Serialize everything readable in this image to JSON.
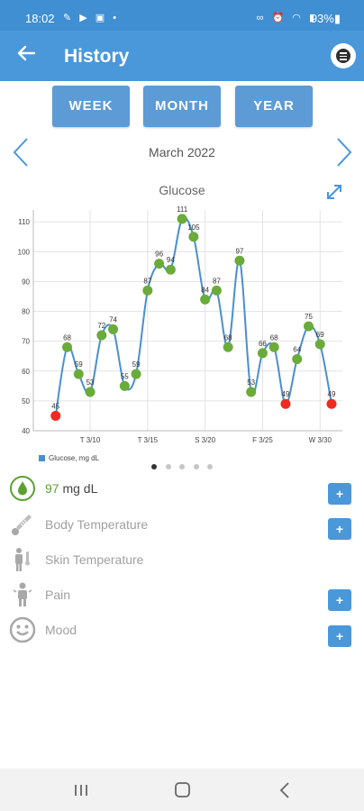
{
  "status_bar": {
    "time": "18:02",
    "left_icons": "✎ ▶ ▣ •",
    "right_icons": "∞ ⏰ ◠ ▮",
    "battery": "93%▮"
  },
  "app_bar": {
    "title": "History"
  },
  "period_buttons": [
    "WEEK",
    "MONTH",
    "YEAR"
  ],
  "month": "March 2022",
  "chart_title": "Glucose",
  "chart_data": {
    "type": "line",
    "title": "Glucose",
    "xlabel": "",
    "ylabel": "",
    "ylim": [
      40,
      114
    ],
    "yticks": [
      40,
      50,
      60,
      70,
      80,
      90,
      100,
      110
    ],
    "xticks": [
      {
        "label": "T 3/10",
        "day": 10
      },
      {
        "label": "T 3/15",
        "day": 15
      },
      {
        "label": "S 3/20",
        "day": 20
      },
      {
        "label": "F 3/25",
        "day": 25
      },
      {
        "label": "W 3/30",
        "day": 30
      }
    ],
    "xlim": [
      6.0,
      31.0
    ],
    "grid": true,
    "legend": "bottom-left",
    "series": [
      {
        "name": "Glucose, mg dL",
        "color": "#4a8fd0",
        "points": [
          {
            "x": 7.0,
            "y": 45,
            "label": "45",
            "status": "low"
          },
          {
            "x": 8.0,
            "y": 68,
            "label": "68",
            "status": "normal"
          },
          {
            "x": 9.0,
            "y": 59,
            "label": "59",
            "status": "normal"
          },
          {
            "x": 10.0,
            "y": 53,
            "label": "53",
            "status": "normal"
          },
          {
            "x": 11.0,
            "y": 72,
            "label": "72",
            "status": "normal"
          },
          {
            "x": 12.0,
            "y": 74,
            "label": "74",
            "status": "normal"
          },
          {
            "x": 13.0,
            "y": 55,
            "label": "55",
            "status": "normal"
          },
          {
            "x": 14.0,
            "y": 59,
            "label": "59",
            "status": "normal"
          },
          {
            "x": 15.0,
            "y": 87,
            "label": "87",
            "status": "normal"
          },
          {
            "x": 16.0,
            "y": 96,
            "label": "96",
            "status": "normal"
          },
          {
            "x": 17.0,
            "y": 94,
            "label": "94",
            "status": "normal"
          },
          {
            "x": 18.0,
            "y": 111,
            "label": "111",
            "status": "normal"
          },
          {
            "x": 19.0,
            "y": 105,
            "label": "105",
            "status": "normal"
          },
          {
            "x": 20.0,
            "y": 84,
            "label": "84",
            "status": "normal"
          },
          {
            "x": 21.0,
            "y": 87,
            "label": "87",
            "status": "normal"
          },
          {
            "x": 22.0,
            "y": 68,
            "label": "68",
            "status": "normal"
          },
          {
            "x": 23.0,
            "y": 97,
            "label": "97",
            "status": "normal"
          },
          {
            "x": 24.0,
            "y": 53,
            "label": "53",
            "status": "normal"
          },
          {
            "x": 25.0,
            "y": 66,
            "label": "66",
            "status": "normal"
          },
          {
            "x": 26.0,
            "y": 68,
            "label": "68",
            "status": "normal"
          },
          {
            "x": 27.0,
            "y": 49,
            "label": "49",
            "status": "low"
          },
          {
            "x": 28.0,
            "y": 64,
            "label": "64",
            "status": "normal"
          },
          {
            "x": 29.0,
            "y": 75,
            "label": "75",
            "status": "normal"
          },
          {
            "x": 30.0,
            "y": 69,
            "label": "69",
            "status": "normal"
          },
          {
            "x": 31.0,
            "y": 49,
            "label": "49",
            "status": "low"
          }
        ]
      }
    ],
    "colors": {
      "normal": "#6aab3a",
      "low": "#ee2b22"
    }
  },
  "legend_label": "Glucose, mg dL",
  "page_indicator": {
    "count": 5,
    "active": 0
  },
  "metrics": {
    "glucose": {
      "value": "97",
      "unit": " mg dL"
    },
    "body_temperature": {
      "label": "Body Temperature"
    },
    "skin_temperature": {
      "label": "Skin Temperature"
    },
    "pain": {
      "label": "Pain"
    },
    "mood": {
      "label": "Mood"
    },
    "plus_label": "+"
  },
  "icons": {
    "back": "arrow-left-icon",
    "menu": "menu-icon",
    "expand": "expand-icon",
    "glucose": "blood-drop-icon",
    "body_temperature": "thermometer-icon",
    "skin_temperature": "body-thermometer-icon",
    "pain": "person-pain-icon",
    "mood": "smiley-icon"
  },
  "colors": {
    "app_bar": "#4a97da",
    "status_bar": "#3f8fd2",
    "accent": "#5ca033",
    "button": "#5d9bd6"
  }
}
